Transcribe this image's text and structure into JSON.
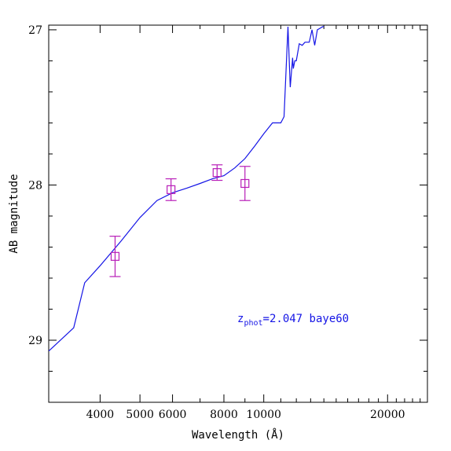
{
  "chart_data": {
    "type": "line",
    "xlabel": "Wavelength (Å)",
    "ylabel": "AB magnitude",
    "x_scale": "log",
    "xlim": [
      3000,
      25000
    ],
    "ylim": [
      29.4,
      26.97
    ],
    "x_ticks_major": [
      4000,
      5000,
      6000,
      8000,
      10000,
      20000
    ],
    "x_tick_labels": [
      "4000",
      "5000",
      "6000",
      "8000",
      "10000",
      "20000"
    ],
    "y_ticks_major": [
      27,
      28,
      29
    ],
    "y_tick_labels": [
      "27",
      "28",
      "29"
    ],
    "grid": false,
    "annotation": {
      "z_base": "z",
      "z_sub": "phot",
      "text": "=2.047 baye60",
      "color": "#1515e6"
    },
    "series": [
      {
        "kind": "template",
        "color": "#1515e6",
        "x": [
          3000,
          3450,
          3670,
          4000,
          4500,
          5000,
          5500,
          6000,
          6500,
          7000,
          7500,
          8000,
          8500,
          9000,
          9500,
          10000,
          10500,
          11000,
          11200,
          11450,
          11600,
          11750,
          11800,
          11900,
          12000,
          12200,
          12400,
          12600,
          12900,
          13100,
          13300,
          13500,
          13700,
          13900,
          14000
        ],
        "y": [
          29.07,
          28.92,
          28.63,
          28.52,
          28.36,
          28.21,
          28.1,
          28.05,
          28.02,
          27.99,
          27.96,
          27.94,
          27.89,
          27.83,
          27.75,
          27.67,
          27.6,
          27.6,
          27.56,
          26.98,
          27.37,
          27.18,
          27.25,
          27.2,
          27.2,
          27.09,
          27.1,
          27.08,
          27.08,
          27.0,
          27.1,
          27.0,
          26.99,
          26.98,
          26.98
        ]
      },
      {
        "kind": "photometry",
        "color": "#b81eb8",
        "x": [
          4350,
          5950,
          7700,
          9000
        ],
        "y": [
          28.46,
          28.03,
          27.92,
          27.99
        ],
        "y_err": [
          0.13,
          0.07,
          0.05,
          0.11
        ]
      }
    ]
  }
}
